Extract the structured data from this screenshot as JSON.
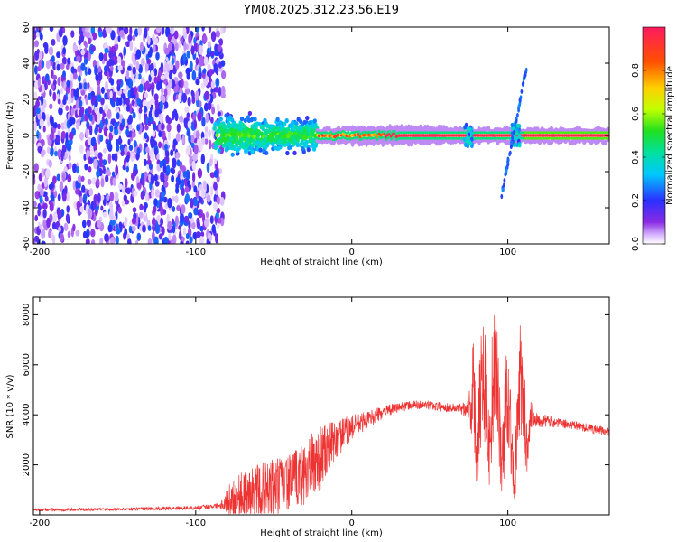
{
  "title": "YM08.2025.312.23.56.E19",
  "chart_data": [
    {
      "type": "heatmap",
      "name": "spectrogram",
      "xlabel": "Height of straight line (km)",
      "ylabel": "Frequency (Hz)",
      "xlim": [
        -204,
        165
      ],
      "ylim": [
        -60,
        60
      ],
      "xticks": [
        -200,
        -100,
        0,
        100
      ],
      "yticks": [
        -60,
        -40,
        -20,
        0,
        20,
        40,
        60
      ],
      "colorbar": {
        "label": "Normalized spectral amplitude",
        "range": [
          0.0,
          1.0
        ],
        "ticks": [
          0.0,
          0.2,
          0.4,
          0.6,
          0.8
        ],
        "tick_labels": [
          "0.0",
          "0.2",
          "0.4",
          "0.6",
          "0.8"
        ]
      },
      "regions": [
        {
          "desc": "noise field",
          "x_range": [
            -204,
            -82
          ],
          "freq_range": [
            -60,
            60
          ],
          "amplitude": 0.15
        },
        {
          "desc": "broad signal",
          "x_range": [
            -88,
            -22
          ],
          "freq_range": [
            -12,
            14
          ],
          "amplitude": 0.45
        },
        {
          "desc": "carrier",
          "x_range": [
            -22,
            165
          ],
          "freq_center": 0,
          "amplitude": 0.95
        },
        {
          "desc": "scatter branch",
          "x_range": [
            96,
            112
          ],
          "freq_range": [
            -33,
            38
          ],
          "amplitude": 0.2
        }
      ]
    },
    {
      "type": "line",
      "name": "snr",
      "xlabel": "Height of straight line (km)",
      "ylabel": "SNR (10 * v/v)",
      "xlim": [
        -204,
        165
      ],
      "ylim": [
        0,
        8700
      ],
      "xticks": [
        -200,
        -100,
        0,
        100
      ],
      "yticks": [
        2000,
        4000,
        6000,
        8000
      ],
      "color": "#ee3333",
      "series": [
        {
          "name": "SNR",
          "x": [
            -204,
            -150,
            -100,
            -85,
            -75,
            -60,
            -50,
            -40,
            -30,
            -20,
            -10,
            0,
            10,
            20,
            30,
            40,
            50,
            60,
            70,
            75,
            78,
            80,
            82,
            85,
            88,
            90,
            93,
            96,
            100,
            104,
            108,
            112,
            115,
            120,
            130,
            140,
            150,
            165
          ],
          "values": [
            200,
            230,
            280,
            380,
            700,
            900,
            1050,
            1300,
            1700,
            2300,
            3000,
            3500,
            3800,
            4100,
            4300,
            4400,
            4380,
            4300,
            4250,
            4300,
            4800,
            2500,
            4800,
            5800,
            2300,
            5000,
            6100,
            1700,
            5500,
            900,
            5600,
            3000,
            4000,
            3800,
            3700,
            3600,
            3500,
            3300
          ],
          "fluct": [
            60,
            60,
            80,
            100,
            900,
            1100,
            1300,
            1100,
            1300,
            1300,
            800,
            500,
            350,
            250,
            200,
            180,
            180,
            180,
            200,
            500,
            2500,
            1500,
            2500,
            2800,
            1500,
            2500,
            2500,
            1300,
            2800,
            800,
            2500,
            1500,
            600,
            300,
            200,
            180,
            180,
            180
          ]
        }
      ]
    }
  ]
}
